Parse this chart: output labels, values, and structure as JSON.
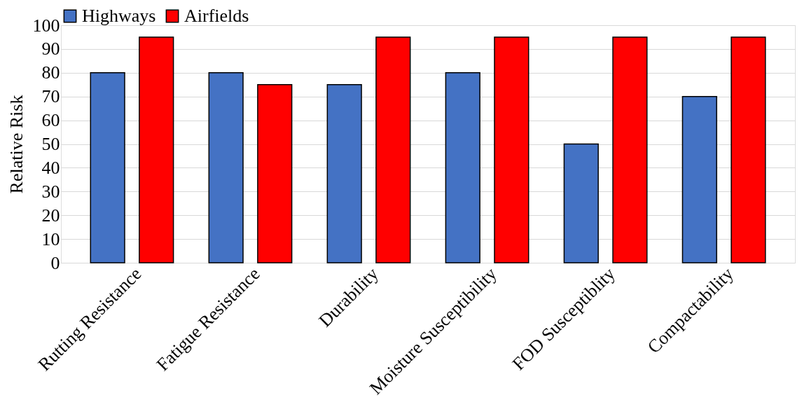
{
  "chart_data": {
    "type": "bar",
    "ylabel": "Relative Risk",
    "categories": [
      "Rutting Resistance",
      "Fatigue Resistance",
      "Durability",
      "Moisture Susceptibility",
      "FOD Susceptiblity",
      "Compactability"
    ],
    "series": [
      {
        "name": "Highways",
        "color": "#4472c4",
        "values": [
          80,
          80,
          75,
          80,
          50,
          70
        ]
      },
      {
        "name": "Airfields",
        "color": "#ff0000",
        "values": [
          95,
          75,
          95,
          95,
          95,
          95
        ]
      }
    ],
    "ylim": [
      0,
      100
    ],
    "yticks": [
      0,
      10,
      20,
      30,
      40,
      50,
      60,
      70,
      80,
      90,
      100
    ],
    "grid": "y",
    "legend": "top"
  }
}
